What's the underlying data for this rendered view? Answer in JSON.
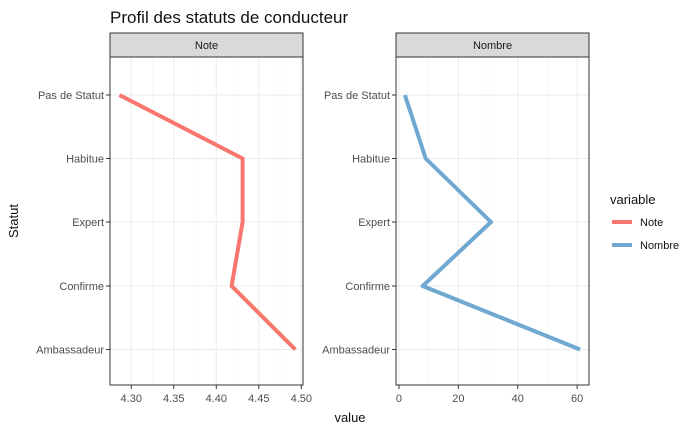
{
  "chart_data": {
    "type": "line",
    "title": "Profil des  statuts de conducteur",
    "xlabel": "value",
    "ylabel": "Statut",
    "categories": [
      "Ambassadeur",
      "Confirme",
      "Expert",
      "Habitue",
      "Pas de Statut"
    ],
    "legend": {
      "title": "variable",
      "placement": "right",
      "entries": [
        {
          "name": "Note",
          "color": "#f8766d"
        },
        {
          "name": "Nombre",
          "color": "#6fa8d0"
        }
      ]
    },
    "grid": true,
    "panels": [
      {
        "strip_label": "Note",
        "series_name": "Note",
        "color": "#f8766d",
        "values": [
          4.493,
          4.418,
          4.431,
          4.431,
          4.286
        ],
        "xlim": [
          4.275,
          4.502
        ],
        "xticks": [
          4.3,
          4.35,
          4.4,
          4.45,
          4.5
        ],
        "xtick_labels": [
          "4.30",
          "4.35",
          "4.40",
          "4.45",
          "4.50"
        ]
      },
      {
        "strip_label": "Nombre",
        "series_name": "Nombre",
        "color": "#6fa8d0",
        "values": [
          61,
          8,
          31,
          9,
          2
        ],
        "xlim": [
          -1,
          64
        ],
        "xticks": [
          0,
          20,
          40,
          60
        ],
        "xtick_labels": [
          "0",
          "20",
          "40",
          "60"
        ]
      }
    ]
  }
}
